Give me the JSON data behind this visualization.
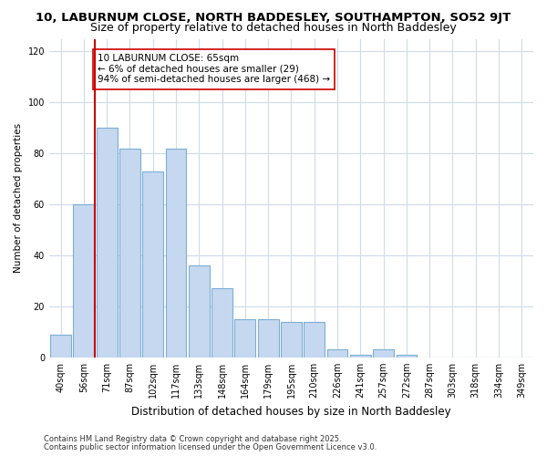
{
  "title1": "10, LABURNUM CLOSE, NORTH BADDESLEY, SOUTHAMPTON, SO52 9JT",
  "title2": "Size of property relative to detached houses in North Baddesley",
  "xlabel": "Distribution of detached houses by size in North Baddesley",
  "ylabel": "Number of detached properties",
  "categories": [
    "40sqm",
    "56sqm",
    "71sqm",
    "87sqm",
    "102sqm",
    "117sqm",
    "133sqm",
    "148sqm",
    "164sqm",
    "179sqm",
    "195sqm",
    "210sqm",
    "226sqm",
    "241sqm",
    "257sqm",
    "272sqm",
    "287sqm",
    "303sqm",
    "318sqm",
    "334sqm",
    "349sqm"
  ],
  "values": [
    9,
    60,
    90,
    82,
    73,
    82,
    36,
    27,
    15,
    15,
    14,
    14,
    3,
    1,
    3,
    1,
    0,
    0,
    0,
    0,
    0
  ],
  "bar_color": "#c5d8f0",
  "bar_edge_color": "#7bafd4",
  "vline_x": 1.5,
  "vline_color": "#cc0000",
  "annotation_text": "10 LABURNUM CLOSE: 65sqm\n← 6% of detached houses are smaller (29)\n94% of semi-detached houses are larger (468) →",
  "annotation_box_color": "white",
  "annotation_box_edge": "#cc0000",
  "ylim": [
    0,
    125
  ],
  "yticks": [
    0,
    20,
    40,
    60,
    80,
    100,
    120
  ],
  "background_color": "#ffffff",
  "plot_bg_color": "#ffffff",
  "grid_color": "#d0daea",
  "footer1": "Contains HM Land Registry data © Crown copyright and database right 2025.",
  "footer2": "Contains public sector information licensed under the Open Government Licence v3.0.",
  "title1_fontsize": 9.5,
  "title2_fontsize": 9,
  "xlabel_fontsize": 8.5,
  "ylabel_fontsize": 7.5,
  "tick_fontsize": 7,
  "footer_fontsize": 6,
  "annotation_fontsize": 7.5
}
